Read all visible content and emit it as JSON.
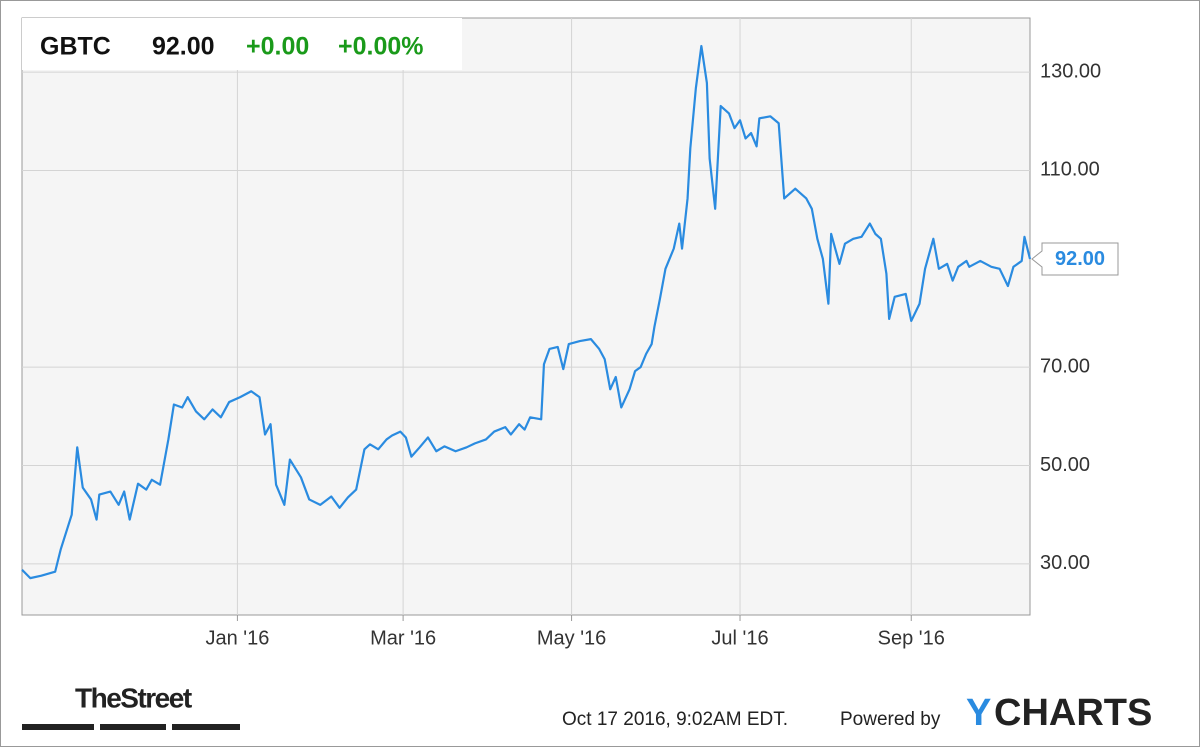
{
  "chart_data": {
    "type": "line",
    "header": {
      "symbol": "GBTC",
      "price": "92.00",
      "change": "+0.00",
      "change_pct": "+0.00%"
    },
    "last_value_label": "92.00",
    "x": [
      0,
      3,
      7,
      12,
      14,
      18,
      20,
      22,
      25,
      27,
      28,
      32,
      35,
      37,
      39,
      42,
      45,
      47,
      50,
      53,
      55,
      58,
      60,
      63,
      66,
      69,
      72,
      75,
      79,
      83,
      86,
      88,
      90,
      92,
      95,
      97,
      101,
      104,
      108,
      112,
      115,
      118,
      121,
      124,
      126,
      129,
      132,
      134,
      137,
      139,
      141,
      144,
      147,
      150,
      153,
      157,
      161,
      164,
      168,
      171,
      175,
      177,
      180,
      182,
      184,
      188,
      189,
      191,
      194,
      196,
      198,
      202,
      206,
      209,
      211,
      213,
      215,
      217,
      220,
      222,
      224,
      226,
      228,
      229,
      231,
      233,
      236,
      238,
      239,
      241,
      242,
      244,
      246,
      248,
      249,
      251,
      253,
      256,
      258,
      260,
      262,
      264,
      266,
      267,
      271,
      274,
      276,
      280,
      284,
      286,
      288,
      290,
      292,
      293,
      296,
      298,
      301,
      304,
      307,
      309,
      311,
      313,
      314,
      316,
      320,
      322,
      325,
      327,
      330,
      332,
      335,
      337,
      339,
      342,
      343,
      347,
      351,
      354,
      357,
      359,
      362,
      363,
      365
    ],
    "series": [
      {
        "name": "GBTC",
        "color": "#2a8be0",
        "values": [
          28.8,
          27.1,
          27.6,
          28.4,
          32.9,
          40.0,
          53.7,
          45.5,
          43.1,
          39.0,
          44.1,
          44.7,
          42.0,
          44.7,
          39.0,
          46.3,
          45.1,
          47.1,
          46.1,
          55.3,
          62.4,
          61.8,
          63.9,
          61.0,
          59.4,
          61.4,
          59.8,
          62.9,
          63.9,
          65.1,
          63.9,
          56.3,
          58.4,
          46.1,
          42.0,
          51.2,
          47.6,
          43.1,
          42.0,
          43.7,
          41.4,
          43.5,
          45.1,
          53.3,
          54.3,
          53.3,
          55.3,
          56.1,
          56.9,
          55.7,
          51.8,
          53.7,
          55.7,
          52.9,
          53.9,
          52.9,
          53.7,
          54.5,
          55.3,
          56.9,
          57.8,
          56.3,
          58.4,
          57.3,
          59.8,
          59.4,
          70.6,
          73.7,
          74.1,
          69.6,
          74.7,
          75.3,
          75.7,
          73.7,
          71.6,
          65.5,
          68.0,
          61.8,
          65.5,
          69.2,
          70.0,
          72.7,
          74.7,
          78.2,
          83.9,
          90.0,
          94.1,
          99.2,
          94.1,
          104.3,
          114.5,
          126.7,
          135.3,
          127.8,
          112.4,
          102.2,
          123.1,
          121.6,
          118.6,
          120.2,
          116.5,
          117.6,
          114.9,
          120.6,
          121.0,
          119.6,
          104.3,
          106.3,
          104.3,
          102.2,
          96.1,
          92.0,
          82.9,
          97.1,
          91.0,
          95.1,
          96.1,
          96.5,
          99.2,
          97.1,
          96.1,
          89.0,
          79.8,
          84.3,
          84.9,
          79.4,
          82.9,
          90.0,
          96.1,
          90.0,
          91.0,
          87.6,
          90.4,
          91.6,
          90.4,
          91.6,
          90.4,
          90.0,
          86.5,
          90.4,
          91.6,
          96.5,
          92.0
        ]
      }
    ],
    "xlim": [
      0,
      365
    ],
    "xticks": [
      {
        "value": 78,
        "label": "Jan '16"
      },
      {
        "value": 138,
        "label": "Mar '16"
      },
      {
        "value": 199,
        "label": "May '16"
      },
      {
        "value": 260,
        "label": "Jul '16"
      },
      {
        "value": 322,
        "label": "Sep '16"
      }
    ],
    "ylim": [
      19.6,
      141
    ],
    "yticks": [
      {
        "value": 30,
        "label": "30.00"
      },
      {
        "value": 50,
        "label": "50.00"
      },
      {
        "value": 70,
        "label": "70.00"
      },
      {
        "value": 110,
        "label": "110.00"
      },
      {
        "value": 130,
        "label": "130.00"
      }
    ],
    "grid": true
  },
  "footer": {
    "publisher": "TheStreet",
    "timestamp": "Oct 17 2016, 9:02AM EDT.",
    "powered": "Powered by",
    "logo_y": "Y",
    "logo_rest": "CHARTS"
  }
}
